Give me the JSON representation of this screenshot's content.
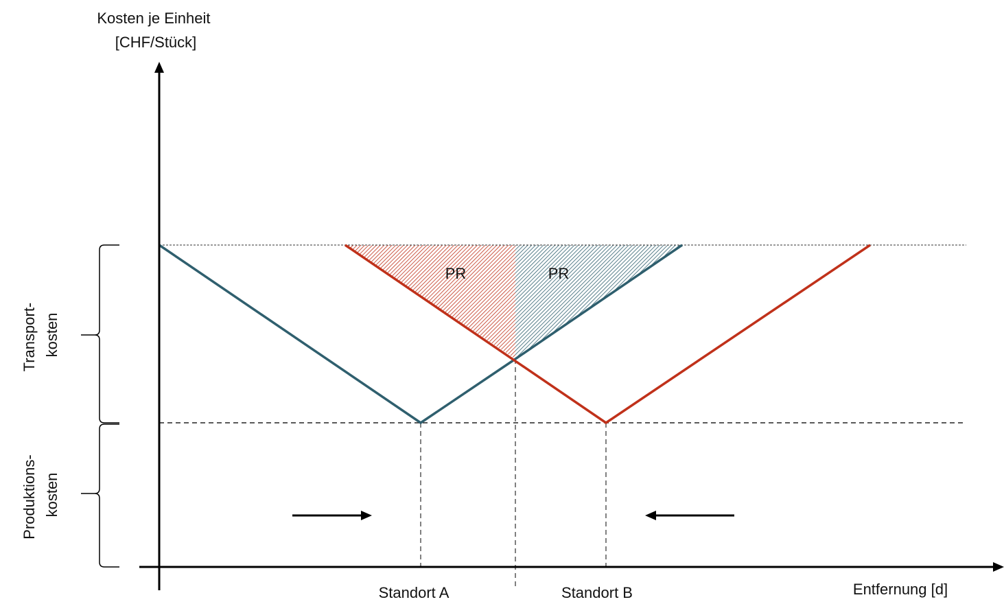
{
  "y_axis_label": [
    "Kosten je Einheit",
    "[CHF/Stück]"
  ],
  "x_axis_label": "Entfernung [d]",
  "brace_transport_label": [
    "Transport-",
    "kosten"
  ],
  "brace_production_label": [
    "Produktions-",
    "kosten"
  ],
  "region_label_left": "PR",
  "region_label_right": "PR",
  "location_a": "Standort A",
  "location_b": "Standort B",
  "colors": {
    "location_a_line": "#2f5f6e",
    "location_b_line": "#c0311a",
    "axis": "#000000",
    "guide": "#808080"
  }
}
